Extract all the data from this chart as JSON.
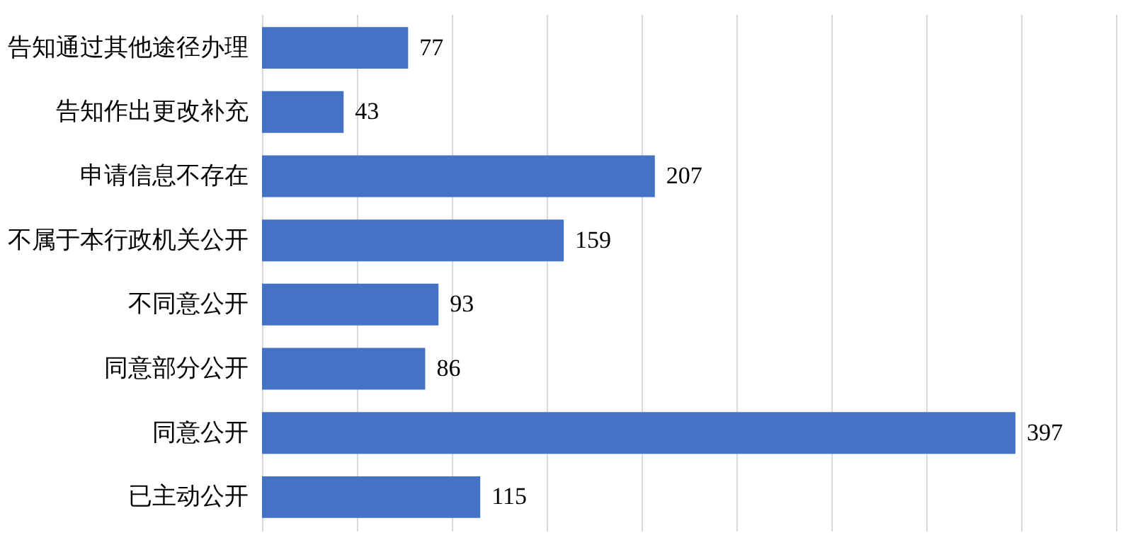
{
  "chart_data": {
    "type": "bar",
    "orientation": "horizontal",
    "categories": [
      "告知通过其他途径办理",
      "告知作出更改补充",
      "申请信息不存在",
      "不属于本行政机关公开",
      "不同意公开",
      "同意部分公开",
      "同意公开",
      "已主动公开"
    ],
    "series": [
      {
        "color": "#4472c4",
        "values": [
          77,
          43,
          207,
          159,
          93,
          86,
          397,
          115
        ]
      }
    ],
    "xlim": [
      0,
      450
    ],
    "xticks": [
      {
        "value": 0,
        "label": null
      },
      {
        "value": 50,
        "label": null
      },
      {
        "value": 100,
        "label": null
      },
      {
        "value": 150,
        "label": null
      },
      {
        "value": 200,
        "label": null
      },
      {
        "value": 250,
        "label": null
      },
      {
        "value": 300,
        "label": null
      },
      {
        "value": 350,
        "label": null
      },
      {
        "value": 400,
        "label": null
      },
      {
        "value": 450,
        "label": null
      }
    ],
    "grid": "x",
    "tick_labels": "y",
    "data_labels": true
  }
}
